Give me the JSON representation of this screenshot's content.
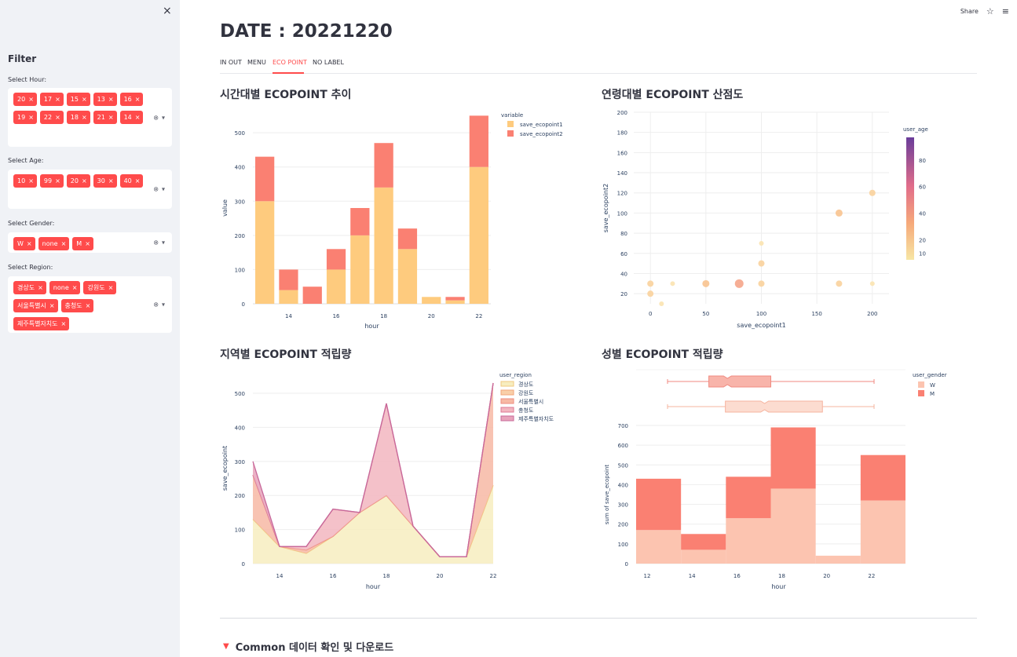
{
  "sidebar": {
    "close_icon": "×",
    "title": "Filter",
    "hour": {
      "label": "Select Hour:",
      "tags": [
        "20",
        "17",
        "15",
        "13",
        "16",
        "19",
        "22",
        "18",
        "21",
        "14"
      ]
    },
    "age": {
      "label": "Select Age:",
      "tags": [
        "10",
        "99",
        "20",
        "30",
        "40"
      ]
    },
    "gender": {
      "label": "Select Gender:",
      "tags": [
        "W",
        "none",
        "M"
      ]
    },
    "region": {
      "label": "Select Region:",
      "tags": [
        "경상도",
        "none",
        "강원도",
        "서울특별시",
        "충청도",
        "제주특별자치도"
      ]
    },
    "tag_remove": "×",
    "clear_icon": "⊗",
    "dropdown_icon": "▾"
  },
  "toolbar": {
    "share": "Share",
    "star_icon": "☆",
    "menu_icon": "≡"
  },
  "main": {
    "title": "DATE : 20221220",
    "tabs": [
      "IN OUT",
      "MENU",
      "ECO POINT",
      "NO LABEL"
    ],
    "active_tab": "ECO POINT",
    "expander": {
      "arrow": "▼",
      "label": "Common 데이터 확인 및 다운로드"
    }
  },
  "colors": {
    "accent": "#ff4b4b",
    "series1": "#fecb7e",
    "series2": "#fa8072"
  },
  "chart_data": [
    {
      "type": "bar",
      "title": "시간대별 ECOPOINT 추이",
      "xlabel": "hour",
      "ylabel": "value",
      "legend_title": "variable",
      "x": [
        13,
        14,
        15,
        16,
        17,
        18,
        19,
        20,
        21,
        22
      ],
      "series": [
        {
          "name": "save_ecopoint1",
          "values": [
            300,
            40,
            0,
            100,
            200,
            340,
            160,
            20,
            10,
            400
          ]
        },
        {
          "name": "save_ecopoint2",
          "values": [
            130,
            60,
            50,
            60,
            80,
            130,
            60,
            0,
            10,
            150
          ]
        }
      ],
      "xticks": [
        14,
        16,
        18,
        20,
        22
      ],
      "yticks": [
        0,
        100,
        200,
        300,
        400,
        500
      ],
      "ylim": [
        0,
        560
      ]
    },
    {
      "type": "scatter",
      "title": "연령대별 ECOPOINT 산점도",
      "xlabel": "save_ecopoint1",
      "ylabel": "save_ecopoint2",
      "colorbar_title": "user_age",
      "colorbar_ticks": [
        10,
        20,
        40,
        60,
        80
      ],
      "xticks": [
        0,
        50,
        100,
        150,
        200
      ],
      "yticks": [
        20,
        40,
        60,
        80,
        100,
        120,
        140,
        160,
        180,
        200
      ],
      "xlim": [
        -15,
        215
      ],
      "ylim": [
        10,
        200
      ],
      "points": [
        {
          "x": 0,
          "y": 30,
          "age": 20
        },
        {
          "x": 0,
          "y": 20,
          "age": 20
        },
        {
          "x": 10,
          "y": 10,
          "age": 10
        },
        {
          "x": 20,
          "y": 30,
          "age": 10
        },
        {
          "x": 50,
          "y": 30,
          "age": 30
        },
        {
          "x": 80,
          "y": 30,
          "age": 40
        },
        {
          "x": 100,
          "y": 30,
          "age": 20
        },
        {
          "x": 100,
          "y": 50,
          "age": 20
        },
        {
          "x": 100,
          "y": 70,
          "age": 10
        },
        {
          "x": 170,
          "y": 30,
          "age": 20
        },
        {
          "x": 170,
          "y": 100,
          "age": 30
        },
        {
          "x": 200,
          "y": 30,
          "age": 10
        },
        {
          "x": 200,
          "y": 120,
          "age": 20
        }
      ]
    },
    {
      "type": "area",
      "title": "지역별 ECOPOINT 적립량",
      "xlabel": "hour",
      "ylabel": "save_ecopoint",
      "legend_title": "user_region",
      "x": [
        13,
        14,
        15,
        16,
        17,
        18,
        19,
        20,
        21,
        22
      ],
      "series": [
        {
          "name": "경상도",
          "values": [
            130,
            50,
            30,
            80,
            150,
            200,
            110,
            20,
            20,
            230
          ]
        },
        {
          "name": "강원도",
          "values": [
            0,
            0,
            0,
            0,
            0,
            0,
            0,
            0,
            0,
            0
          ]
        },
        {
          "name": "서울특별시",
          "values": [
            130,
            0,
            10,
            0,
            0,
            0,
            0,
            0,
            0,
            300
          ]
        },
        {
          "name": "충청도",
          "values": [
            0,
            0,
            10,
            80,
            0,
            270,
            0,
            0,
            0,
            0
          ]
        },
        {
          "name": "제주특별자치도",
          "values": [
            40,
            0,
            0,
            0,
            0,
            0,
            0,
            0,
            0,
            0
          ]
        }
      ],
      "xticks": [
        14,
        16,
        18,
        20,
        22
      ],
      "yticks": [
        0,
        100,
        200,
        300,
        400,
        500
      ],
      "ylim": [
        0,
        560
      ]
    },
    {
      "type": "bar",
      "title": "성별 ECOPOINT 적립량",
      "xlabel": "hour",
      "ylabel": "sum of save_ecopoint",
      "legend_title": "user_gender",
      "bins": [
        [
          12,
          14
        ],
        [
          14,
          16
        ],
        [
          16,
          18
        ],
        [
          18,
          20
        ],
        [
          20,
          22
        ],
        [
          22,
          24
        ]
      ],
      "series": [
        {
          "name": "W",
          "values": [
            170,
            70,
            230,
            380,
            40,
            320
          ]
        },
        {
          "name": "M",
          "values": [
            260,
            80,
            210,
            310,
            0,
            230
          ]
        }
      ],
      "xticks": [
        12,
        14,
        16,
        18,
        20,
        22
      ],
      "yticks": [
        0,
        100,
        200,
        300,
        400,
        500,
        600,
        700
      ],
      "ylim": [
        0,
        700
      ],
      "boxplot": {
        "M": {
          "min": 12.3,
          "q1": 14.3,
          "median": 15.2,
          "q3": 17.3,
          "max": 22.3
        },
        "W": {
          "min": 12.3,
          "q1": 15.1,
          "median": 17.0,
          "q3": 19.8,
          "max": 22.3
        }
      }
    }
  ]
}
